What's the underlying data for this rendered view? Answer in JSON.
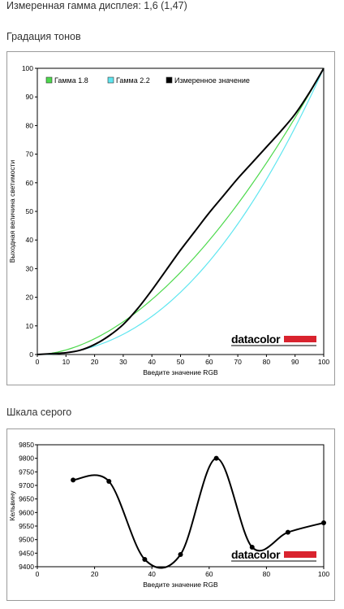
{
  "header": {
    "measured_gamma": "Измеренная гамма дисплея: 1,6 (1,47)",
    "tone_title": "Градация тонов",
    "gray_title": "Шкала серого"
  },
  "logo": {
    "text": "datacolor"
  },
  "colors": {
    "gamma18": "#4cd94c",
    "gamma22": "#5fe6f0",
    "measured": "#000000",
    "logo_bar": "#d9232e"
  },
  "chart_data": [
    {
      "type": "line",
      "xlabel": "Введите значение RGB",
      "ylabel": "Выходная величина светимости",
      "xlim": [
        0,
        100
      ],
      "ylim": [
        0,
        100
      ],
      "xticks": [
        0,
        10,
        20,
        30,
        40,
        50,
        60,
        70,
        80,
        90,
        100
      ],
      "yticks": [
        0,
        10,
        20,
        30,
        40,
        50,
        60,
        70,
        80,
        90,
        100
      ],
      "grid": false,
      "legend": "top-left",
      "series": [
        {
          "name": "Гамма 1.8",
          "color": "#4cd94c",
          "formula_gamma": 1.8
        },
        {
          "name": "Гамма 2.2",
          "color": "#5fe6f0",
          "formula_gamma": 2.2
        },
        {
          "name": "Измеренное значение",
          "color": "#000000",
          "x": [
            0,
            5,
            10,
            15,
            20,
            25,
            30,
            35,
            40,
            45,
            50,
            55,
            60,
            65,
            70,
            75,
            80,
            85,
            90,
            95,
            100
          ],
          "y": [
            0,
            0.3,
            0.6,
            1.5,
            3.5,
            6.5,
            10.5,
            16,
            22.5,
            29.5,
            36.5,
            43,
            49.5,
            55.5,
            61.5,
            67,
            72.5,
            78,
            84,
            91.5,
            100
          ]
        }
      ]
    },
    {
      "type": "line",
      "xlabel": "Введите значение RGB",
      "ylabel": "Кельвину",
      "xlim": [
        0,
        100
      ],
      "ylim": [
        9400,
        9850
      ],
      "xticks": [
        0,
        20,
        40,
        60,
        80,
        100
      ],
      "yticks": [
        9400,
        9450,
        9500,
        9550,
        9600,
        9650,
        9700,
        9750,
        9800,
        9850
      ],
      "grid": false,
      "series": [
        {
          "name": "",
          "x": [
            12.5,
            25,
            37.5,
            50,
            62.5,
            75,
            87.5,
            100
          ],
          "y": [
            9720,
            9715,
            9427,
            9445,
            9800,
            9472,
            9527,
            9562
          ]
        }
      ]
    }
  ]
}
